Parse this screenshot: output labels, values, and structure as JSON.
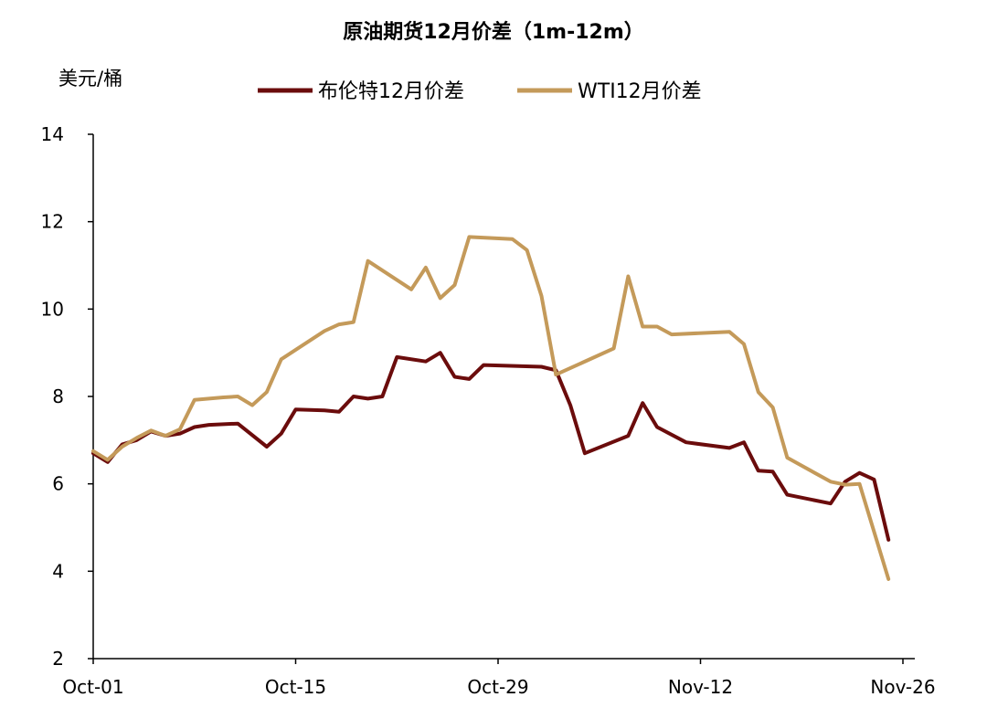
{
  "chart_data": {
    "type": "line",
    "title": "原油期货12月价差（1m-12m）",
    "ylabel": "美元/桶",
    "xlabel": "",
    "ylim": [
      2,
      14
    ],
    "yticks": [
      2,
      4,
      6,
      8,
      10,
      12,
      14
    ],
    "xlim": [
      "2018-10-01",
      "2018-11-26"
    ],
    "xticks": [
      "Oct-01",
      "Oct-15",
      "Oct-29",
      "Nov-12",
      "Nov-26"
    ],
    "grid": false,
    "legend_position": "top",
    "series": [
      {
        "name": "布伦特12月价差",
        "color": "#6b0c0c",
        "points": [
          [
            "2018-10-01",
            6.7
          ],
          [
            "2018-10-02",
            6.5
          ],
          [
            "2018-10-03",
            6.9
          ],
          [
            "2018-10-04",
            7.0
          ],
          [
            "2018-10-05",
            7.2
          ],
          [
            "2018-10-06",
            7.1
          ],
          [
            "2018-10-07",
            7.15
          ],
          [
            "2018-10-08",
            7.3
          ],
          [
            "2018-10-09",
            7.35
          ],
          [
            "2018-10-11",
            7.38
          ],
          [
            "2018-10-13",
            6.85
          ],
          [
            "2018-10-14",
            7.15
          ],
          [
            "2018-10-15",
            7.7
          ],
          [
            "2018-10-17",
            7.68
          ],
          [
            "2018-10-18",
            7.65
          ],
          [
            "2018-10-19",
            8.0
          ],
          [
            "2018-10-20",
            7.95
          ],
          [
            "2018-10-21",
            8.0
          ],
          [
            "2018-10-22",
            8.9
          ],
          [
            "2018-10-24",
            8.8
          ],
          [
            "2018-10-25",
            9.0
          ],
          [
            "2018-10-26",
            8.45
          ],
          [
            "2018-10-27",
            8.4
          ],
          [
            "2018-10-28",
            8.72
          ],
          [
            "2018-11-01",
            8.68
          ],
          [
            "2018-11-02",
            8.6
          ],
          [
            "2018-11-03",
            7.8
          ],
          [
            "2018-11-04",
            6.7
          ],
          [
            "2018-11-07",
            7.1
          ],
          [
            "2018-11-08",
            7.85
          ],
          [
            "2018-11-09",
            7.3
          ],
          [
            "2018-11-11",
            6.95
          ],
          [
            "2018-11-14",
            6.82
          ],
          [
            "2018-11-15",
            6.95
          ],
          [
            "2018-11-16",
            6.3
          ],
          [
            "2018-11-17",
            6.28
          ],
          [
            "2018-11-18",
            5.75
          ],
          [
            "2018-11-21",
            5.55
          ],
          [
            "2018-11-22",
            6.05
          ],
          [
            "2018-11-23",
            6.25
          ],
          [
            "2018-11-24",
            6.1
          ],
          [
            "2018-11-25",
            4.72
          ]
        ]
      },
      {
        "name": "WTI12月价差",
        "color": "#c49a5a",
        "points": [
          [
            "2018-10-01",
            6.75
          ],
          [
            "2018-10-02",
            6.55
          ],
          [
            "2018-10-03",
            6.85
          ],
          [
            "2018-10-04",
            7.05
          ],
          [
            "2018-10-05",
            7.22
          ],
          [
            "2018-10-06",
            7.1
          ],
          [
            "2018-10-07",
            7.25
          ],
          [
            "2018-10-08",
            7.92
          ],
          [
            "2018-10-10",
            7.98
          ],
          [
            "2018-10-11",
            8.0
          ],
          [
            "2018-10-12",
            7.8
          ],
          [
            "2018-10-13",
            8.1
          ],
          [
            "2018-10-14",
            8.85
          ],
          [
            "2018-10-17",
            9.5
          ],
          [
            "2018-10-18",
            9.65
          ],
          [
            "2018-10-19",
            9.7
          ],
          [
            "2018-10-20",
            11.1
          ],
          [
            "2018-10-23",
            10.45
          ],
          [
            "2018-10-24",
            10.95
          ],
          [
            "2018-10-25",
            10.25
          ],
          [
            "2018-10-26",
            10.55
          ],
          [
            "2018-10-27",
            11.65
          ],
          [
            "2018-10-30",
            11.6
          ],
          [
            "2018-10-31",
            11.35
          ],
          [
            "2018-11-01",
            10.3
          ],
          [
            "2018-11-02",
            8.5
          ],
          [
            "2018-11-06",
            9.1
          ],
          [
            "2018-11-07",
            10.75
          ],
          [
            "2018-11-08",
            9.6
          ],
          [
            "2018-11-09",
            9.6
          ],
          [
            "2018-11-10",
            9.42
          ],
          [
            "2018-11-14",
            9.48
          ],
          [
            "2018-11-15",
            9.2
          ],
          [
            "2018-11-16",
            8.1
          ],
          [
            "2018-11-17",
            7.75
          ],
          [
            "2018-11-18",
            6.6
          ],
          [
            "2018-11-21",
            6.05
          ],
          [
            "2018-11-22",
            5.98
          ],
          [
            "2018-11-23",
            6.0
          ],
          [
            "2018-11-25",
            3.82
          ]
        ]
      }
    ]
  }
}
